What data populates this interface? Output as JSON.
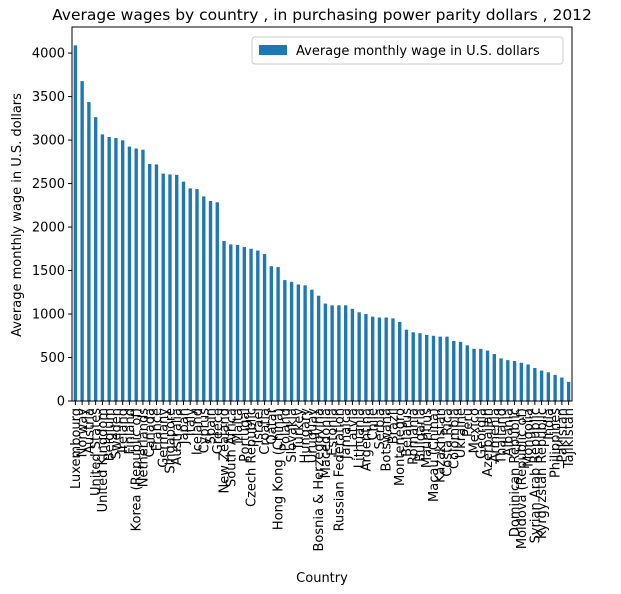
{
  "chart_data": {
    "type": "bar",
    "title": "Average wages by country , in purchasing power parity dollars , 2012",
    "x_label": "Country",
    "y_label": "Average monthly wage in U.S. dollars",
    "legend_position": "upper right",
    "series": [
      {
        "name": "Average monthly wage in U.S. dollars",
        "color": "#1f77b4",
        "values": [
          4089,
          3678,
          3437,
          3263,
          3065,
          3035,
          3023,
          2997,
          2925,
          2903,
          2889,
          2725,
          2720,
          2614,
          2605,
          2600,
          2522,
          2445,
          2436,
          2352,
          2300,
          2285,
          1840,
          1800,
          1795,
          1770,
          1750,
          1730,
          1690,
          1550,
          1540,
          1390,
          1370,
          1340,
          1330,
          1280,
          1210,
          1120,
          1100,
          1100,
          1100,
          1060,
          1020,
          1000,
          970,
          960,
          960,
          950,
          910,
          820,
          790,
          780,
          760,
          750,
          740,
          740,
          690,
          680,
          640,
          600,
          600,
          580,
          540,
          490,
          470,
          460,
          440,
          420,
          380,
          350,
          330,
          300,
          270,
          220
        ]
      }
    ],
    "categories": [
      "Luxembourg",
      "Norway",
      "Austria",
      "United States",
      "United Kingdom",
      "Belgium",
      "Sweden",
      "Ireland",
      "Finland",
      "Korea (Republic of)",
      "Netherlands",
      "Canada",
      "France",
      "Germany",
      "Singapore",
      "Australia",
      "Japan",
      "Italy",
      "Iceland",
      "Cyprus",
      "Spain",
      "Greece",
      "New Zealand",
      "South Africa",
      "Malta",
      "Portugal",
      "Czech Republic",
      "Israel",
      "Croatia",
      "Qatar",
      "Hong Kong (China)",
      "Poland",
      "Slovakia",
      "Turkey",
      "Hungary",
      "Uruguay",
      "Bosnia & Herzegovina",
      "Macedonia",
      "Estonia",
      "Russian Federation",
      "Jamaica",
      "Latvia",
      "Lithuania",
      "Argentina",
      "Chile",
      "Serbia",
      "Botswana",
      "Brazil",
      "Montenegro",
      "Belarus",
      "Romania",
      "Bulgaria",
      "Mauritius",
      "Macau (China)",
      "Kazakhstan",
      "Costa Rica",
      "Colombia",
      "Ukraine",
      "Peru",
      "Mexico",
      "Georgia",
      "Azerbaijan",
      "Armenia",
      "Thailand",
      "Albania",
      "Dominican Republic",
      "Moldova (Republic of)",
      "Mongolia",
      "Syrian Arab Republic",
      "Kyrgyzstan Republic",
      "India",
      "Philippines",
      "Pakistan",
      "Tajikistan"
    ],
    "ylim": [
      0,
      4300
    ],
    "yticks": [
      0,
      500,
      1000,
      1500,
      2000,
      2500,
      3000,
      3500,
      4000
    ]
  }
}
